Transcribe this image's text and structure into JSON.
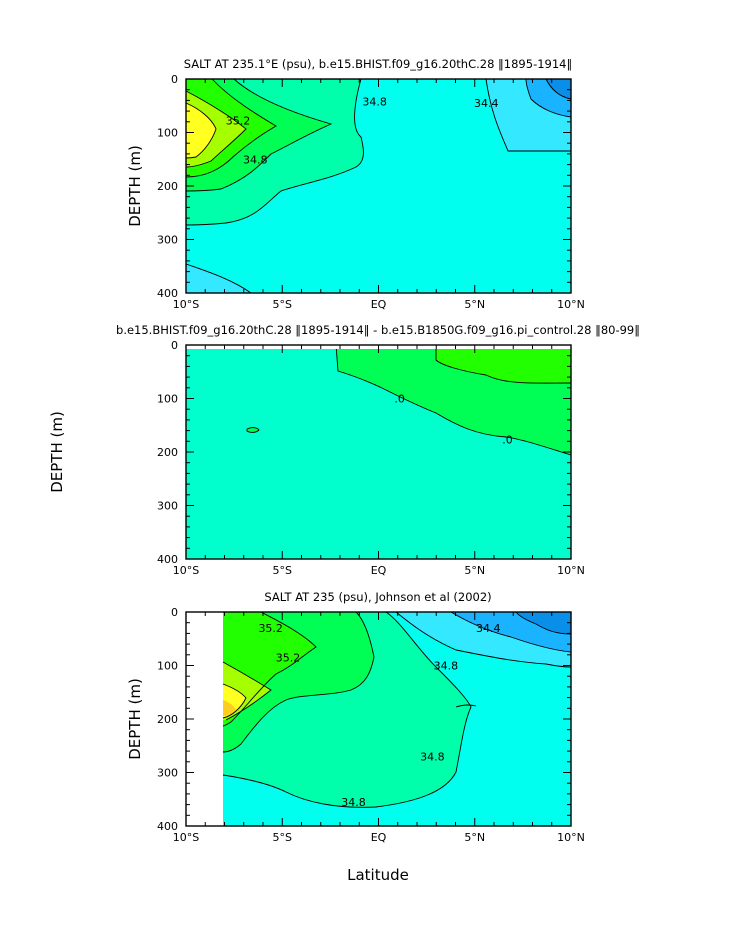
{
  "figure": {
    "xlabel": "Latitude",
    "ylabel": "DEPTH (m)",
    "x_tick_labels": [
      "10°S",
      "5°S",
      "EQ",
      "5°N",
      "10°N"
    ],
    "y_tick_labels": [
      "0",
      "100",
      "200",
      "300",
      "400"
    ],
    "colors": {
      "c_lt_34_4": "#19b3ff",
      "c_34_4_34_6": "#33e8ff",
      "c_34_6_34_8": "#00ffee",
      "c_34_8_35_0": "#00ffaa",
      "c_35_0_35_2": "#00ff55",
      "c_35_2_35_4": "#22ff00",
      "c_35_4_35_6": "#a6ff00",
      "c_gt_35_6": "#ffff20",
      "diff_base": "#00ffcc",
      "diff_pos": "#00ff55"
    }
  },
  "chart_data": [
    {
      "type": "contour",
      "title": "SALT AT 235.1°E (psu), b.e15.BHIST.f09_g16.20thC.28 ‖1895-1914‖",
      "xlabel": "",
      "ylabel": "DEPTH (m)",
      "xlim": [
        -10,
        10
      ],
      "ylim": [
        400,
        0
      ],
      "contour_labels": [
        {
          "text": "35.2",
          "lat": -7.3,
          "depth": 78
        },
        {
          "text": "34.8",
          "lat": -6.4,
          "depth": 150
        },
        {
          "text": "34.8",
          "lat": -0.2,
          "depth": 42
        },
        {
          "text": "34.4",
          "lat": 5.6,
          "depth": 45
        }
      ]
    },
    {
      "type": "contour",
      "title": "b.e15.BHIST.f09_g16.20thC.28 ‖1895-1914‖ - b.e15.B1850G.f09_g16.pi_control.28 ‖80-99‖",
      "xlabel": "",
      "ylabel": "",
      "xlim": [
        -10,
        10
      ],
      "ylim": [
        400,
        0
      ],
      "contour_labels": [
        {
          "text": ".0",
          "lat": 1.1,
          "depth": 100
        },
        {
          "text": ".0",
          "lat": 6.7,
          "depth": 177
        }
      ]
    },
    {
      "type": "contour",
      "title": "SALT AT 235 (psu), Johnson et al (2002)",
      "xlabel": "Latitude",
      "ylabel": "DEPTH (m)",
      "xlim": [
        -10,
        10
      ],
      "ylim": [
        400,
        0
      ],
      "contour_labels": [
        {
          "text": "35.2",
          "lat": -5.6,
          "depth": 30
        },
        {
          "text": "35.2",
          "lat": -4.7,
          "depth": 85
        },
        {
          "text": "34.4",
          "lat": 5.7,
          "depth": 30
        },
        {
          "text": "34.8",
          "lat": 3.5,
          "depth": 100
        },
        {
          "text": "34.8",
          "lat": 2.8,
          "depth": 270
        },
        {
          "text": "34.8",
          "lat": -1.3,
          "depth": 355
        }
      ]
    }
  ]
}
